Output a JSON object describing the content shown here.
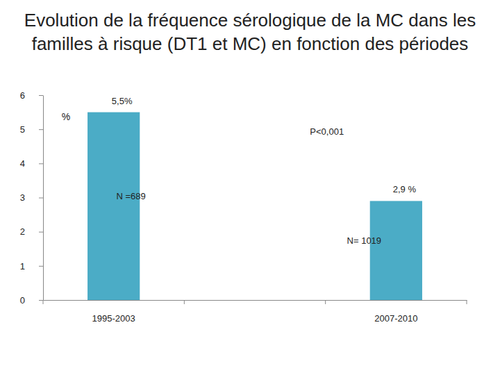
{
  "chart_data": {
    "type": "bar",
    "title": "Evolution de la fréquence sérologique de la MC dans les familles à risque (DT1 et MC) en fonction des périodes",
    "y_label": "%",
    "categories": [
      "1995-2003",
      null,
      "2007-2010"
    ],
    "values": [
      5.5,
      null,
      2.9
    ],
    "value_labels": [
      "5,5%",
      null,
      "2,9 %"
    ],
    "data_labels": true,
    "annotations": [
      "P<0,001",
      "N =689",
      "N= 1019"
    ],
    "color": "#4bacc6",
    "ylim": [
      0,
      6
    ],
    "yticks": [
      0,
      1,
      2,
      3,
      4,
      5,
      6
    ],
    "grid": false
  }
}
